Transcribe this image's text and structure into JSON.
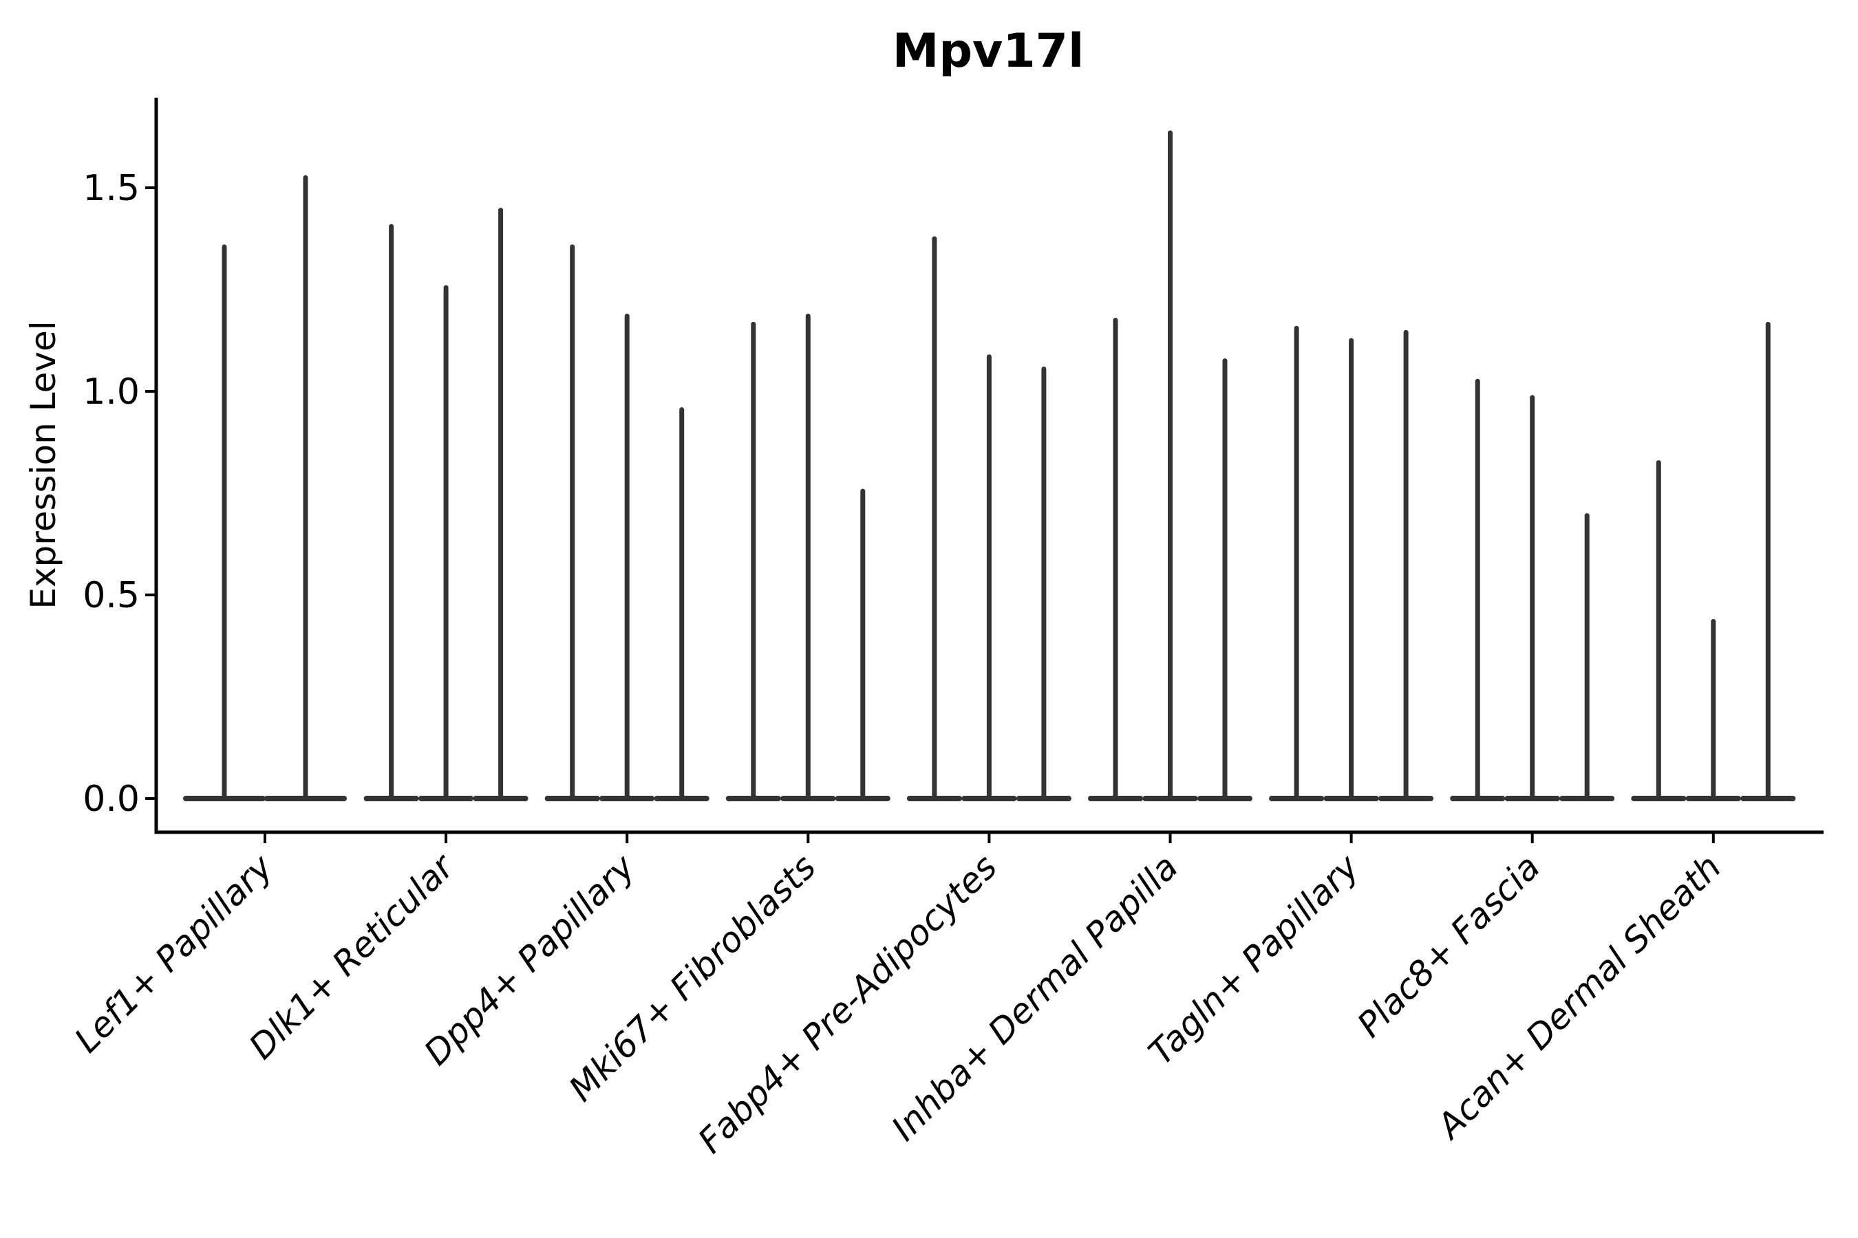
{
  "page": {
    "background": "#ffffff"
  },
  "chart_data": {
    "type": "violin",
    "title": "Mpv17l",
    "ylabel": "Expression Level",
    "xlabel": "",
    "grid": false,
    "legend": null,
    "ytick_labels": [
      "0.0",
      "0.5",
      "1.0",
      "1.5"
    ],
    "ytick_values": [
      0.0,
      0.5,
      1.0,
      1.5
    ],
    "ylim": [
      -0.08,
      1.72
    ],
    "x_label_angle_deg": -45,
    "categories": [
      "Lef1+ Papillary",
      "Dlk1+ Reticular",
      "Dpp4+ Papillary",
      "Mki67+ Fibroblasts",
      "Fabp4+ Pre-Adipocytes",
      "Inhba+ Dermal Papilla",
      "Tagln+ Papillary",
      "Plac8+ Fascia",
      "Acan+ Dermal Sheath"
    ],
    "groups": [
      {
        "category": "Lef1+ Papillary",
        "base_halfwidth": 60,
        "violins": [
          {
            "dx": -59,
            "max_expression": 1.36
          },
          {
            "dx": 59,
            "max_expression": 1.53
          }
        ]
      },
      {
        "category": "Dlk1+ Reticular",
        "base_halfwidth": 40,
        "violins": [
          {
            "dx": -79.5,
            "max_expression": 1.41
          },
          {
            "dx": 0,
            "max_expression": 1.26
          },
          {
            "dx": 79.5,
            "max_expression": 1.45
          }
        ]
      },
      {
        "category": "Dpp4+ Papillary",
        "base_halfwidth": 40,
        "violins": [
          {
            "dx": -79.5,
            "max_expression": 1.36
          },
          {
            "dx": 0,
            "max_expression": 1.19
          },
          {
            "dx": 79.5,
            "max_expression": 0.96
          }
        ]
      },
      {
        "category": "Mki67+ Fibroblasts",
        "base_halfwidth": 40,
        "violins": [
          {
            "dx": -79.5,
            "max_expression": 1.17
          },
          {
            "dx": 0,
            "max_expression": 1.19
          },
          {
            "dx": 79.5,
            "max_expression": 0.76
          }
        ]
      },
      {
        "category": "Fabp4+ Pre-Adipocytes",
        "base_halfwidth": 40,
        "violins": [
          {
            "dx": -79.5,
            "max_expression": 1.38
          },
          {
            "dx": 0,
            "max_expression": 1.09
          },
          {
            "dx": 79.5,
            "max_expression": 1.06
          }
        ]
      },
      {
        "category": "Inhba+ Dermal Papilla",
        "base_halfwidth": 40,
        "violins": [
          {
            "dx": -79.5,
            "max_expression": 1.18
          },
          {
            "dx": 0,
            "max_expression": 1.64
          },
          {
            "dx": 79.5,
            "max_expression": 1.08
          }
        ]
      },
      {
        "category": "Tagln+ Papillary",
        "base_halfwidth": 40,
        "violins": [
          {
            "dx": -79.5,
            "max_expression": 1.16
          },
          {
            "dx": 0,
            "max_expression": 1.13
          },
          {
            "dx": 79.5,
            "max_expression": 1.15
          }
        ]
      },
      {
        "category": "Plac8+ Fascia",
        "base_halfwidth": 40,
        "violins": [
          {
            "dx": -79.5,
            "max_expression": 1.03
          },
          {
            "dx": 0,
            "max_expression": 0.99
          },
          {
            "dx": 79.5,
            "max_expression": 0.7
          }
        ]
      },
      {
        "category": "Acan+ Dermal Sheath",
        "base_halfwidth": 40,
        "violins": [
          {
            "dx": -79.5,
            "max_expression": 0.83
          },
          {
            "dx": 0,
            "max_expression": 0.44
          },
          {
            "dx": 79.5,
            "max_expression": 1.17
          }
        ]
      }
    ],
    "colors": {
      "violin": "#333333",
      "axis": "#000000",
      "text": "#000000",
      "background": "#ffffff"
    }
  }
}
